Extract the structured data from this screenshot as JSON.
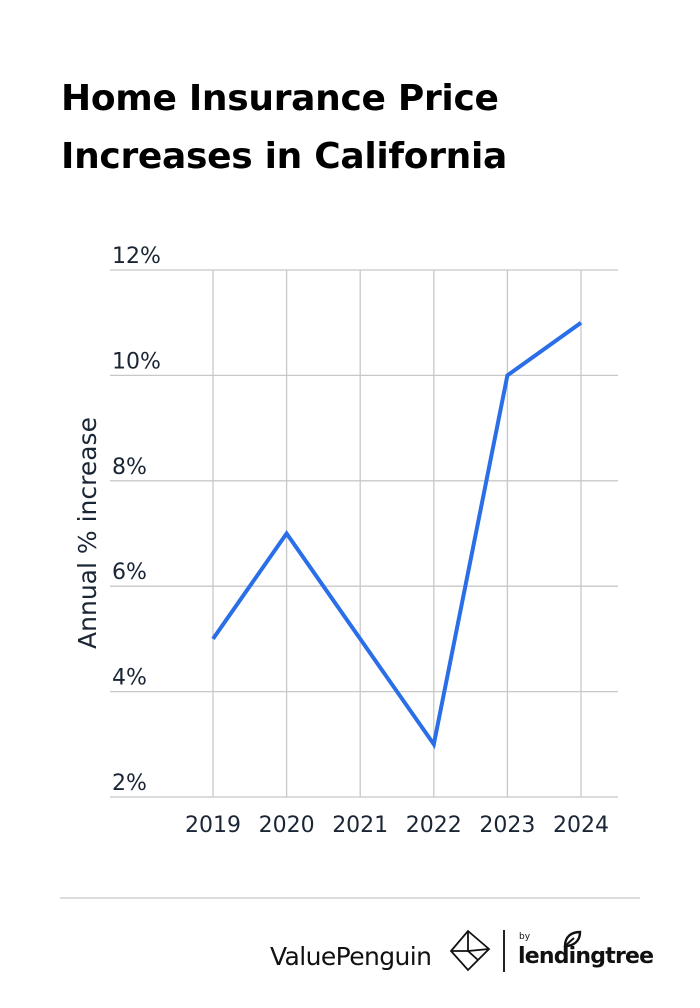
{
  "title": {
    "line1": "Home Insurance Price",
    "line2": "Increases in California"
  },
  "colors": {
    "line": "#2a6ee8",
    "grid": "#c8c8c8",
    "tick_text": "#1a2535",
    "title_text": "#000000"
  },
  "chart_data": {
    "type": "line",
    "title": "Home Insurance Price Increases in California",
    "xlabel": "",
    "ylabel": "Annual % increase",
    "categories": [
      "2019",
      "2020",
      "2021",
      "2022",
      "2023",
      "2024"
    ],
    "series": [
      {
        "name": "Annual % increase",
        "values": [
          5,
          7,
          5,
          3,
          10,
          11
        ]
      }
    ],
    "ylim": [
      2,
      12
    ],
    "yticks": [
      2,
      4,
      6,
      8,
      10,
      12
    ],
    "ytick_labels": [
      "2%",
      "4%",
      "6%",
      "8%",
      "10%",
      "12%"
    ],
    "grid": true,
    "legend": "none"
  },
  "footer": {
    "brand": "ValuePenguin",
    "by": "by",
    "partner": "lendingtree"
  }
}
